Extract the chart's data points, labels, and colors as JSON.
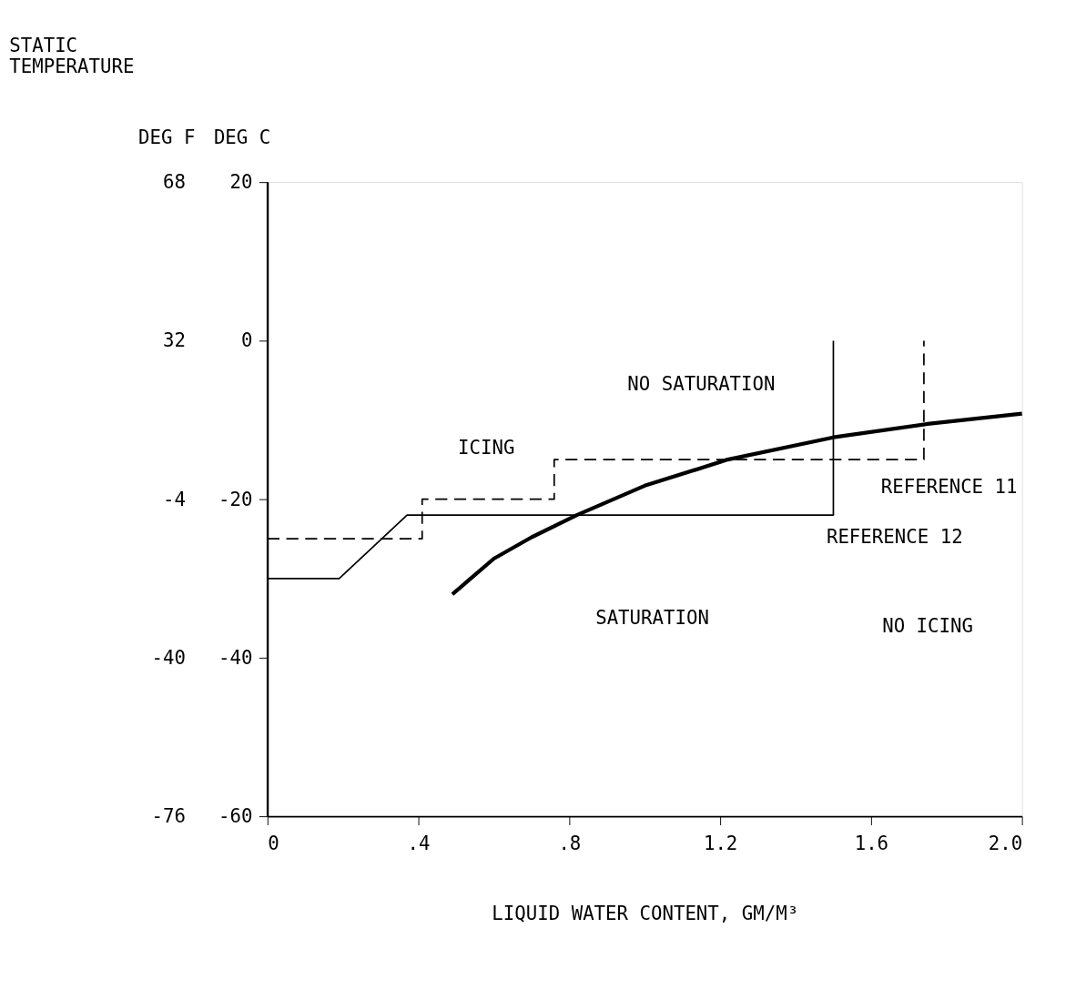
{
  "chart_data": {
    "type": "line",
    "title": "STATIC TEMPERATURE",
    "xlabel": "LIQUID WATER CONTENT, GM/M³",
    "ylabel": "DEG C",
    "y2label": "DEG F",
    "xlim": [
      0,
      2.0
    ],
    "xticks": [
      0,
      {
        "value": 0.4,
        "label": ".4"
      },
      {
        "value": 0.8,
        "label": ".8"
      },
      {
        "value": 1.2,
        "label": "1.2"
      },
      {
        "value": 1.6,
        "label": "1.6"
      },
      {
        "value": 2.0,
        "label": "2.0"
      }
    ],
    "ylim": [
      -60,
      20
    ],
    "yticks": [
      -60,
      -40,
      -20,
      0,
      20
    ],
    "y2lim": [
      -76,
      68
    ],
    "y2ticks": [
      -76,
      -40,
      -4,
      32,
      68
    ],
    "grid": false,
    "series": [
      {
        "color": "#000000",
        "line_style": "solid",
        "x": [
          0.49,
          0.6,
          0.7,
          0.82,
          1.0,
          1.22,
          1.5,
          1.75,
          2.0
        ],
        "values": [
          -32,
          -27.5,
          -24.8,
          -22,
          -18.3,
          -15,
          -12.2,
          -10.5,
          -9.2
        ]
      },
      {
        "name": "REFERENCE 11",
        "color": "#000000",
        "line_style": "dashed",
        "x": [
          0,
          0.41,
          0.41,
          0.76,
          0.76,
          1.74,
          1.74
        ],
        "values": [
          -25,
          -25,
          -20,
          -20,
          -15,
          -15,
          0
        ]
      },
      {
        "name": "REFERENCE 12",
        "color": "#000000",
        "line_style": "solid",
        "x": [
          0,
          0.19,
          0.37,
          1.5,
          1.5
        ],
        "values": [
          -30,
          -30,
          -22,
          -22,
          0
        ]
      }
    ],
    "annotations": [
      "ICING",
      "NO SATURATION",
      "SATURATION",
      "NO ICING"
    ]
  }
}
